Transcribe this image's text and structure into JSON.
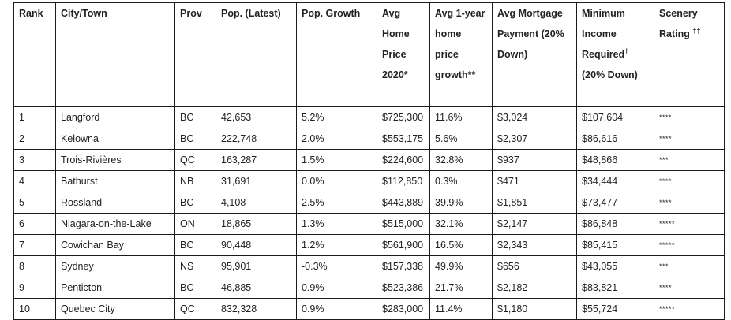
{
  "table": {
    "headers": [
      {
        "text": "Rank",
        "sup": ""
      },
      {
        "text": "City/Town",
        "sup": ""
      },
      {
        "text": "Prov",
        "sup": ""
      },
      {
        "text": "Pop. (Latest)",
        "sup": ""
      },
      {
        "text": "Pop. Growth",
        "sup": ""
      },
      {
        "text": "Avg Home Price 2020*",
        "sup": ""
      },
      {
        "text": "Avg 1-year home price growth**",
        "sup": ""
      },
      {
        "text": "Avg Mortgage Payment (20% Down)",
        "sup": ""
      },
      {
        "text": "Minimum Income Required",
        "sup": "†",
        "after": "(20% Down)"
      },
      {
        "text": "Scenery Rating",
        "sup": "††"
      }
    ],
    "rows": [
      [
        "1",
        "Langford",
        "BC",
        "42,653",
        "5.2%",
        "$725,300",
        "11.6%",
        "$3,024",
        "$107,604",
        "****"
      ],
      [
        "2",
        "Kelowna",
        "BC",
        "222,748",
        "2.0%",
        "$553,175",
        "5.6%",
        "$2,307",
        "$86,616",
        "****"
      ],
      [
        "3",
        "Trois-Rivières",
        "QC",
        "163,287",
        "1.5%",
        "$224,600",
        "32.8%",
        "$937",
        "$48,866",
        "***"
      ],
      [
        "4",
        "Bathurst",
        "NB",
        "31,691",
        "0.0%",
        "$112,850",
        "0.3%",
        "$471",
        "$34,444",
        "****"
      ],
      [
        "5",
        "Rossland",
        "BC",
        "4,108",
        "2.5%",
        "$443,889",
        "39.9%",
        "$1,851",
        "$73,477",
        "****"
      ],
      [
        "6",
        "Niagara-on-the-Lake",
        "ON",
        "18,865",
        "1.3%",
        "$515,000",
        "32.1%",
        "$2,147",
        "$86,848",
        "*****"
      ],
      [
        "7",
        "Cowichan Bay",
        "BC",
        "90,448",
        "1.2%",
        "$561,900",
        "16.5%",
        "$2,343",
        "$85,415",
        "*****"
      ],
      [
        "8",
        "Sydney",
        "NS",
        "95,901",
        "-0.3%",
        "$157,338",
        "49.9%",
        "$656",
        "$43,055",
        "***"
      ],
      [
        "9",
        "Penticton",
        "BC",
        "46,885",
        "0.9%",
        "$523,386",
        "21.7%",
        "$2,182",
        "$83,821",
        "****"
      ],
      [
        "10",
        "Quebec City",
        "QC",
        "832,328",
        "0.9%",
        "$283,000",
        "11.4%",
        "$1,180",
        "$55,724",
        "*****"
      ]
    ]
  }
}
